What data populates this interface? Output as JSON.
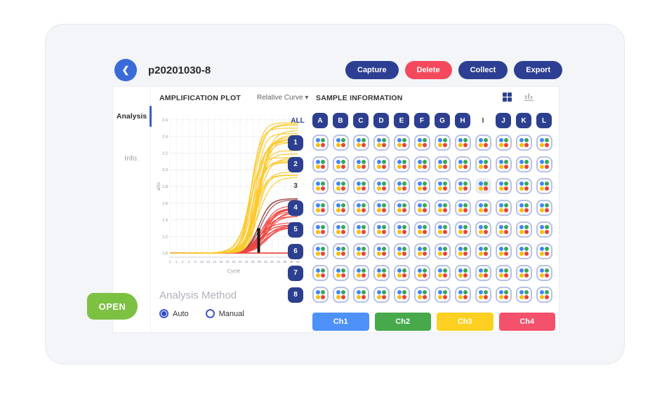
{
  "window": {
    "title": "p20201030-8"
  },
  "icons": {
    "back_chevron": "❮",
    "dropdown_caret": "▾"
  },
  "header": {
    "buttons": [
      {
        "label": "Capture",
        "color": "#2d3f92"
      },
      {
        "label": "Delete",
        "color": "#f4495c"
      },
      {
        "label": "Collect",
        "color": "#2d3f92"
      },
      {
        "label": "Export",
        "color": "#2d3f92"
      }
    ]
  },
  "sidebar": {
    "items": [
      {
        "label": "Analysis",
        "active": true
      },
      {
        "label": "Info.",
        "active": false
      }
    ]
  },
  "plot_panel": {
    "title": "AMPLIFICATION PLOT",
    "curve_selector": "Relative Curve",
    "analysis_method": {
      "label": "Analysis Method",
      "options": [
        {
          "label": "Auto",
          "selected": true
        },
        {
          "label": "Manual",
          "selected": false
        }
      ]
    }
  },
  "open_button": {
    "label": "OPEN",
    "color": "#7cc142"
  },
  "chart_data": {
    "type": "line",
    "title": "AMPLIFICATION PLOT",
    "xlabel": "Cycle",
    "ylabel": "ΔRn",
    "xlim": [
      0,
      40
    ],
    "ylim": [
      1.0,
      2.6
    ],
    "x_ticks": [
      0,
      2,
      4,
      6,
      8,
      10,
      12,
      14,
      16,
      18,
      20,
      22,
      24,
      26,
      28,
      30,
      32,
      34,
      36,
      38,
      40
    ],
    "y_ticks": [
      1.0,
      1.2,
      1.4,
      1.6,
      1.8,
      2.0,
      2.2,
      2.4,
      2.6
    ],
    "grid": true,
    "legend": "none",
    "baseline_value": 1.0,
    "baseline_color": "#ef4540",
    "marker": {
      "cycle": 27.8,
      "y_start": 1.02,
      "y_end": 1.28,
      "color": "#1a1a1a"
    },
    "bundles": [
      {
        "name": "Ch4-red-curves",
        "color": "#ef4540",
        "count": 18,
        "midpoint_range": [
          27.5,
          30.5
        ],
        "plateau_range": [
          1.3,
          1.58
        ],
        "slope_range": [
          0.4,
          0.6
        ],
        "baseline": 1.0
      },
      {
        "name": "Ch4-dark-curves",
        "color": "#9b4444",
        "count": 3,
        "midpoint_range": [
          27.5,
          28.5
        ],
        "plateau_range": [
          1.6,
          1.66
        ],
        "slope_range": [
          0.5,
          0.6
        ],
        "baseline": 1.0
      },
      {
        "name": "Ch3-yellow-curves",
        "color": "#fcc92d",
        "count": 24,
        "midpoint_range": [
          25.0,
          28.0
        ],
        "plateau_range": [
          1.9,
          2.6
        ],
        "slope_range": [
          0.45,
          0.7
        ],
        "baseline": 1.0
      }
    ]
  },
  "sample_panel": {
    "title": "SAMPLE INFORMATION",
    "all_label": "ALL",
    "columns": [
      "A",
      "B",
      "C",
      "D",
      "E",
      "F",
      "G",
      "H",
      "I",
      "J",
      "K",
      "L"
    ],
    "plain_column": "I",
    "rows": [
      "1",
      "2",
      "3",
      "4",
      "5",
      "6",
      "7",
      "8"
    ],
    "plain_row": "3",
    "highlighted_well": {
      "row": "3",
      "col": "I"
    },
    "well_dot_colors": [
      "#4285f4",
      "#34a853",
      "#fbbc05",
      "#ea4335"
    ],
    "channels": [
      {
        "label": "Ch1",
        "color": "#4e92f9"
      },
      {
        "label": "Ch2",
        "color": "#47a94c"
      },
      {
        "label": "Ch3",
        "color": "#fdd021"
      },
      {
        "label": "Ch4",
        "color": "#f4516c"
      }
    ]
  }
}
